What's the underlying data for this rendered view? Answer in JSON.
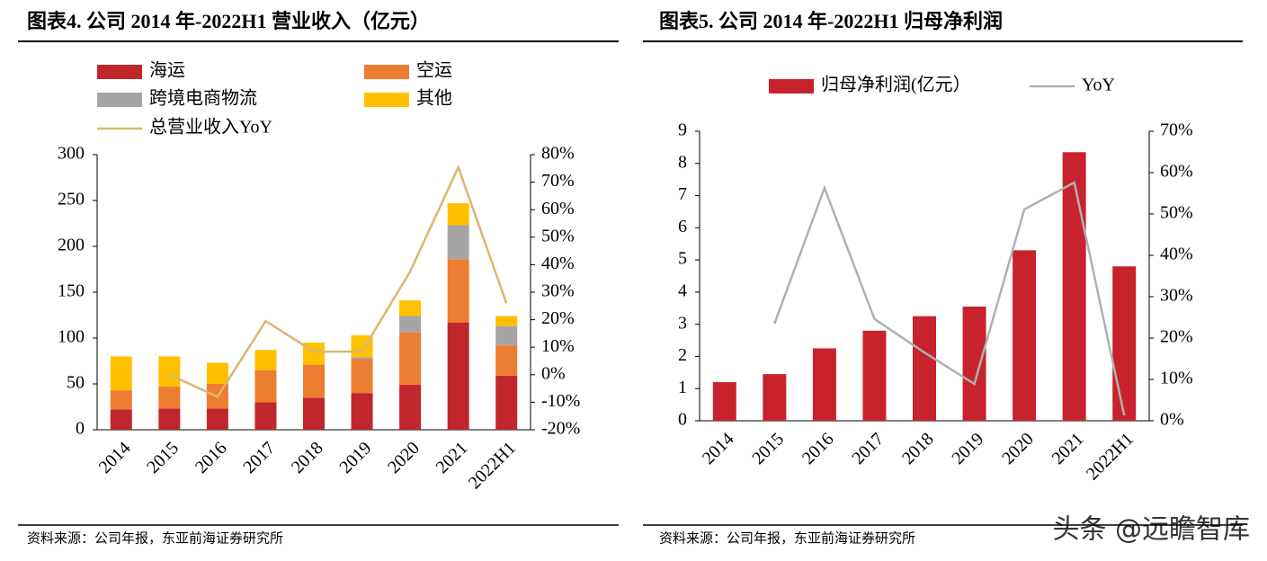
{
  "chart_data": [
    {
      "type": "bar",
      "stacked": true,
      "title": "图表4.   公司 2014 年-2022H1 营业收入（亿元）",
      "source": "资料来源：公司年报，东亚前海证券研究所",
      "categories": [
        "2014",
        "2015",
        "2016",
        "2017",
        "2018",
        "2019",
        "2020",
        "2021",
        "2022H1"
      ],
      "series": [
        {
          "name": "海运",
          "color": "#c0272d",
          "values": [
            22,
            23,
            23,
            30,
            35,
            40,
            49,
            117,
            59
          ]
        },
        {
          "name": "空运",
          "color": "#ed7d31",
          "values": [
            21,
            24,
            27,
            35,
            36,
            37,
            57,
            69,
            33
          ]
        },
        {
          "name": "跨境电商物流",
          "color": "#a5a5a5",
          "values": [
            0,
            0,
            0,
            0,
            0,
            2,
            18,
            37,
            21
          ]
        },
        {
          "name": "其他",
          "color": "#ffc000",
          "values": [
            37,
            33,
            23,
            22,
            24,
            24,
            17,
            24,
            11
          ]
        },
        {
          "name": "总营业收入YoY",
          "color": "#dcb66e",
          "type": "line",
          "axis": "y2",
          "values": [
            null,
            0,
            -8,
            19.5,
            8.4,
            8.4,
            37.5,
            75.4,
            26
          ]
        }
      ],
      "ylim": [
        0,
        300
      ],
      "yticks": [
        0,
        50,
        100,
        150,
        200,
        250,
        300
      ],
      "y2lim": [
        -20,
        80
      ],
      "y2ticks": [
        {
          "value": -20,
          "label": "-20%"
        },
        {
          "value": -10,
          "label": "-10%"
        },
        {
          "value": 0,
          "label": "0%"
        },
        {
          "value": 10,
          "label": "10%"
        },
        {
          "value": 20,
          "label": "20%"
        },
        {
          "value": 30,
          "label": "30%"
        },
        {
          "value": 40,
          "label": "40%"
        },
        {
          "value": 50,
          "label": "50%"
        },
        {
          "value": 60,
          "label": "60%"
        },
        {
          "value": 70,
          "label": "70%"
        },
        {
          "value": 80,
          "label": "80%"
        }
      ],
      "grid": false
    },
    {
      "type": "bar",
      "stacked": false,
      "title": "图表5.   公司 2014 年-2022H1 归母净利润",
      "source": "资料来源：公司年报，东亚前海证券研究所",
      "categories": [
        "2014",
        "2015",
        "2016",
        "2017",
        "2018",
        "2019",
        "2020",
        "2021",
        "2022H1"
      ],
      "series": [
        {
          "name": "归母净利润(亿元）",
          "color": "#c8232c",
          "values": [
            1.2,
            1.45,
            2.25,
            2.8,
            3.25,
            3.55,
            5.3,
            8.35,
            4.8
          ]
        },
        {
          "name": "YoY",
          "color": "#b0b0b0",
          "type": "line",
          "axis": "y2",
          "values": [
            null,
            23.5,
            56.3,
            24.6,
            16.5,
            8.9,
            51.1,
            57.6,
            1.3
          ]
        }
      ],
      "ylim": [
        0,
        9
      ],
      "yticks": [
        0,
        1,
        2,
        3,
        4,
        5,
        6,
        7,
        8,
        9
      ],
      "y2lim": [
        0,
        70
      ],
      "y2ticks": [
        {
          "value": 0,
          "label": "0%"
        },
        {
          "value": 10,
          "label": "10%"
        },
        {
          "value": 20,
          "label": "20%"
        },
        {
          "value": 30,
          "label": "30%"
        },
        {
          "value": 40,
          "label": "40%"
        },
        {
          "value": 50,
          "label": "50%"
        },
        {
          "value": 60,
          "label": "60%"
        },
        {
          "value": 70,
          "label": "70%"
        }
      ],
      "grid": false
    }
  ],
  "watermark": "头条 @远瞻智库"
}
